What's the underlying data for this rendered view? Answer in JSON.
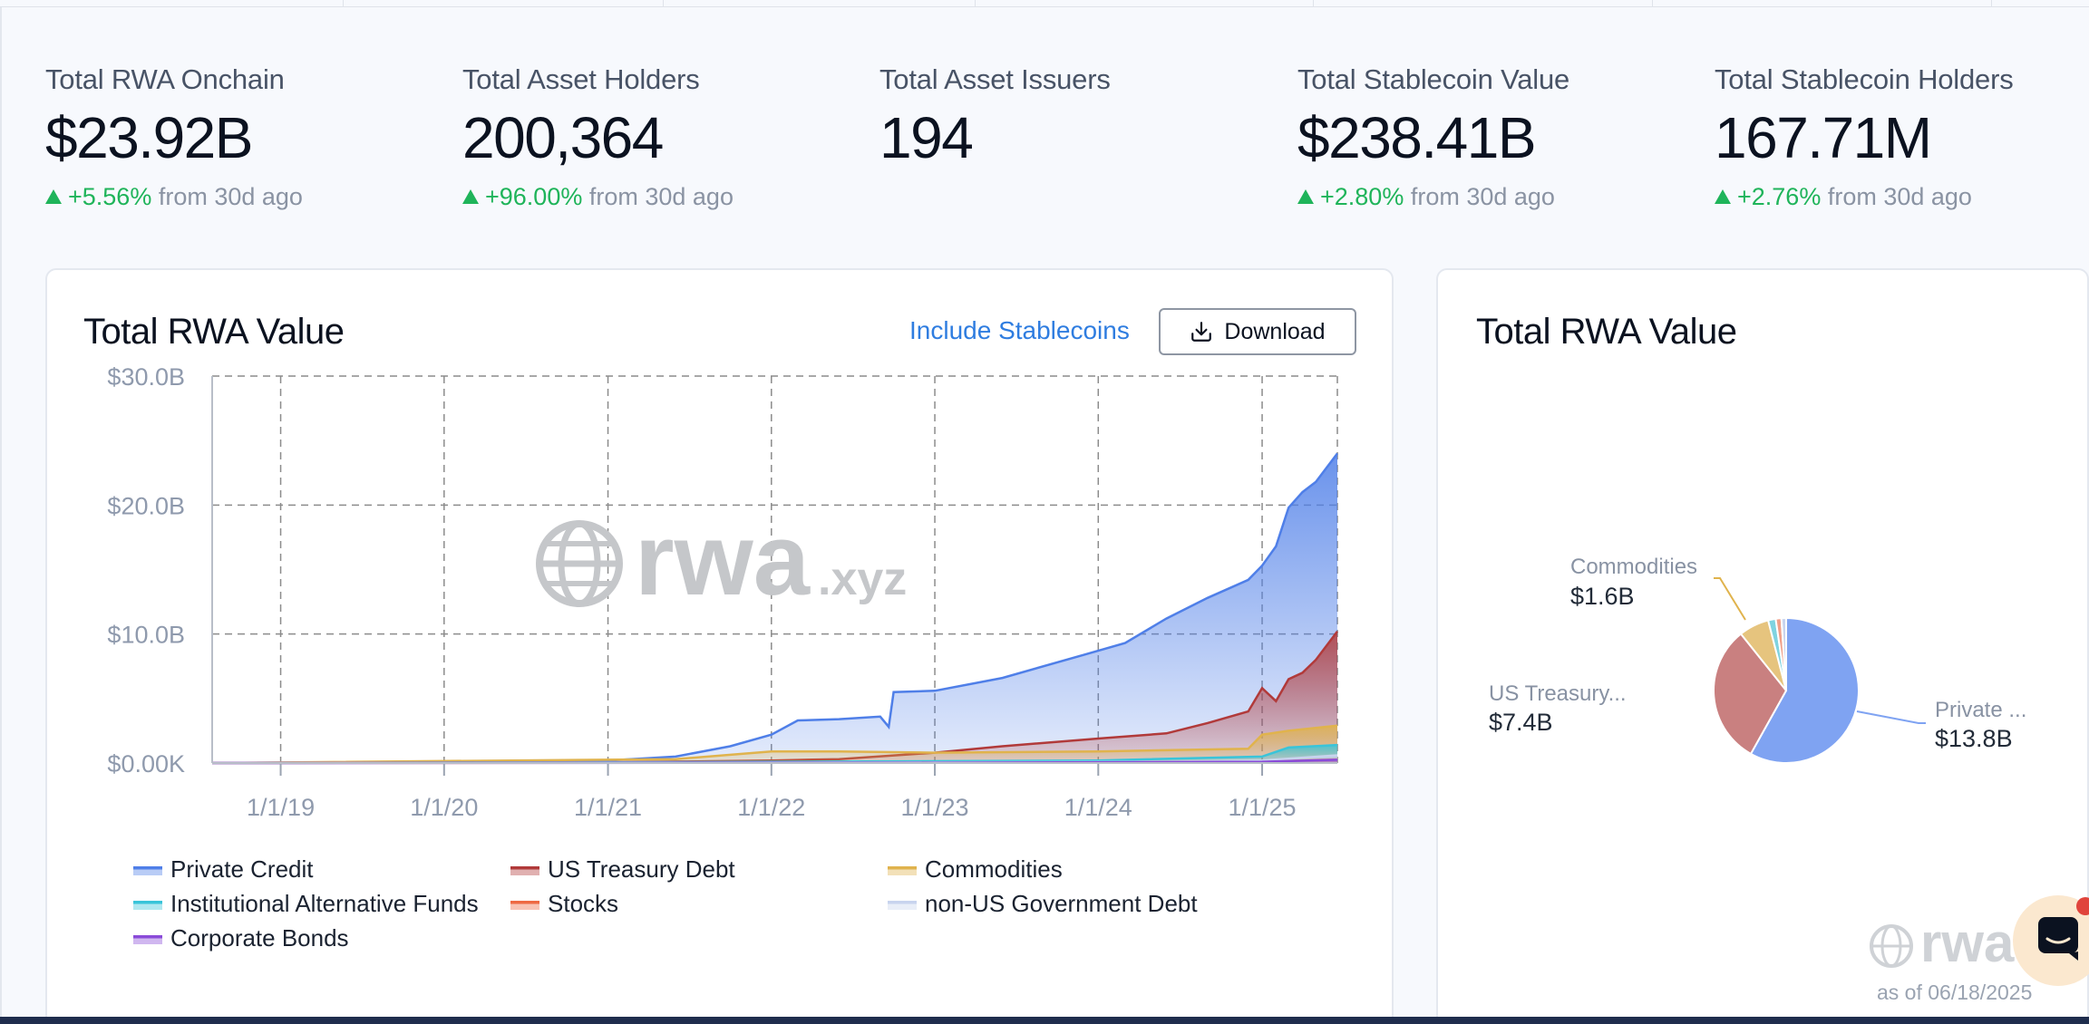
{
  "stats": [
    {
      "label": "Total RWA Onchain",
      "value": "$23.92B",
      "change": "+5.56%",
      "suffix": "from 30d ago"
    },
    {
      "label": "Total Asset Holders",
      "value": "200,364",
      "change": "+96.00%",
      "suffix": "from 30d ago"
    },
    {
      "label": "Total Asset Issuers",
      "value": "194",
      "change": "",
      "suffix": ""
    },
    {
      "label": "Total Stablecoin Value",
      "value": "$238.41B",
      "change": "+2.80%",
      "suffix": "from 30d ago"
    },
    {
      "label": "Total Stablecoin Holders",
      "value": "167.71M",
      "change": "+2.76%",
      "suffix": "from 30d ago"
    }
  ],
  "area_card": {
    "title": "Total RWA Value",
    "include_stablecoins": "Include Stablecoins",
    "download": "Download",
    "watermark_main": "rwa",
    "watermark_suffix": ".xyz"
  },
  "pie_card": {
    "title": "Total RWA Value",
    "as_of": "as of 06/18/2025",
    "watermark": "rwa"
  },
  "colors": {
    "private_credit": "#4f7fe8",
    "us_treasury": "#b13a3a",
    "commodities": "#e0b34d",
    "inst_alt_funds": "#39c4d9",
    "stocks": "#ee6a43",
    "non_us_gov": "#c8d4ee",
    "corporate_bonds": "#8a4bd8",
    "accent_green": "#1fb45a",
    "link_blue": "#2f7de0"
  },
  "chart_data": [
    {
      "type": "area",
      "title": "Total RWA Value",
      "stacked": false,
      "ylim": [
        0,
        30
      ],
      "yticks": [
        "$0.00K",
        "$10.0B",
        "$20.0B",
        "$30.0B"
      ],
      "xticks": [
        "1/1/19",
        "1/1/20",
        "1/1/21",
        "1/1/22",
        "1/1/23",
        "1/1/24",
        "1/1/25"
      ],
      "xlim": [
        "2018-08-01",
        "2025-06-18"
      ],
      "grid": true,
      "legend_position": "bottom",
      "unit": "USD billions",
      "series": [
        {
          "name": "Private Credit",
          "points": [
            [
              "2018-08-01",
              0
            ],
            [
              "2019-06-01",
              0.05
            ],
            [
              "2020-06-01",
              0.1
            ],
            [
              "2021-01-01",
              0.2
            ],
            [
              "2021-06-01",
              0.5
            ],
            [
              "2021-10-01",
              1.3
            ],
            [
              "2022-01-01",
              2.2
            ],
            [
              "2022-03-01",
              3.3
            ],
            [
              "2022-06-01",
              3.4
            ],
            [
              "2022-09-01",
              3.6
            ],
            [
              "2022-09-20",
              2.8
            ],
            [
              "2022-10-01",
              5.5
            ],
            [
              "2023-01-01",
              5.6
            ],
            [
              "2023-06-01",
              6.6
            ],
            [
              "2023-12-01",
              8.4
            ],
            [
              "2024-03-01",
              9.3
            ],
            [
              "2024-06-01",
              11.2
            ],
            [
              "2024-09-01",
              12.8
            ],
            [
              "2024-12-01",
              14.2
            ],
            [
              "2025-01-01",
              15.3
            ],
            [
              "2025-02-01",
              16.8
            ],
            [
              "2025-03-01",
              19.8
            ],
            [
              "2025-04-01",
              21.0
            ],
            [
              "2025-05-01",
              21.8
            ],
            [
              "2025-06-18",
              24.0
            ]
          ]
        },
        {
          "name": "US Treasury Debt",
          "points": [
            [
              "2018-08-01",
              0
            ],
            [
              "2021-01-01",
              0.05
            ],
            [
              "2022-01-01",
              0.2
            ],
            [
              "2022-06-01",
              0.3
            ],
            [
              "2023-01-01",
              0.8
            ],
            [
              "2023-06-01",
              1.3
            ],
            [
              "2024-01-01",
              1.9
            ],
            [
              "2024-06-01",
              2.3
            ],
            [
              "2024-09-01",
              3.1
            ],
            [
              "2024-12-01",
              4.0
            ],
            [
              "2025-01-01",
              5.8
            ],
            [
              "2025-02-01",
              4.8
            ],
            [
              "2025-03-01",
              6.5
            ],
            [
              "2025-04-01",
              7.0
            ],
            [
              "2025-05-01",
              8.0
            ],
            [
              "2025-06-18",
              10.2
            ]
          ]
        },
        {
          "name": "Commodities",
          "points": [
            [
              "2018-08-01",
              0
            ],
            [
              "2021-06-01",
              0.3
            ],
            [
              "2022-01-01",
              0.9
            ],
            [
              "2022-06-01",
              0.9
            ],
            [
              "2023-01-01",
              0.8
            ],
            [
              "2024-01-01",
              0.9
            ],
            [
              "2024-12-01",
              1.1
            ],
            [
              "2025-01-01",
              2.2
            ],
            [
              "2025-03-01",
              2.5
            ],
            [
              "2025-06-18",
              2.9
            ]
          ]
        },
        {
          "name": "Institutional Alternative Funds",
          "points": [
            [
              "2018-08-01",
              0
            ],
            [
              "2021-01-01",
              0.05
            ],
            [
              "2022-01-01",
              0.1
            ],
            [
              "2024-01-01",
              0.2
            ],
            [
              "2025-01-01",
              0.5
            ],
            [
              "2025-03-01",
              1.2
            ],
            [
              "2025-06-18",
              1.4
            ]
          ]
        },
        {
          "name": "Stocks",
          "points": [
            [
              "2018-08-01",
              0
            ],
            [
              "2022-01-01",
              0.02
            ],
            [
              "2024-06-01",
              0.05
            ],
            [
              "2025-01-01",
              0.1
            ],
            [
              "2025-06-18",
              0.3
            ]
          ]
        },
        {
          "name": "non-US Government Debt",
          "points": [
            [
              "2018-08-01",
              0
            ],
            [
              "2023-01-01",
              0.05
            ],
            [
              "2024-06-01",
              0.1
            ],
            [
              "2025-01-01",
              0.2
            ],
            [
              "2025-06-18",
              0.6
            ]
          ]
        },
        {
          "name": "Corporate Bonds",
          "points": [
            [
              "2018-08-01",
              0
            ],
            [
              "2023-01-01",
              0.02
            ],
            [
              "2025-01-01",
              0.1
            ],
            [
              "2025-06-18",
              0.25
            ]
          ]
        }
      ]
    },
    {
      "type": "pie",
      "title": "Total RWA Value",
      "slices": [
        {
          "name": "Private ...",
          "value": 13.8,
          "display": "$13.8B"
        },
        {
          "name": "US Treasury...",
          "value": 7.4,
          "display": "$7.4B"
        },
        {
          "name": "Commodities",
          "value": 1.6,
          "display": "$1.6B"
        },
        {
          "name": "",
          "value": 0.4,
          "display": ""
        },
        {
          "name": "",
          "value": 0.3,
          "display": ""
        },
        {
          "name": "",
          "value": 0.25,
          "display": ""
        }
      ]
    }
  ]
}
